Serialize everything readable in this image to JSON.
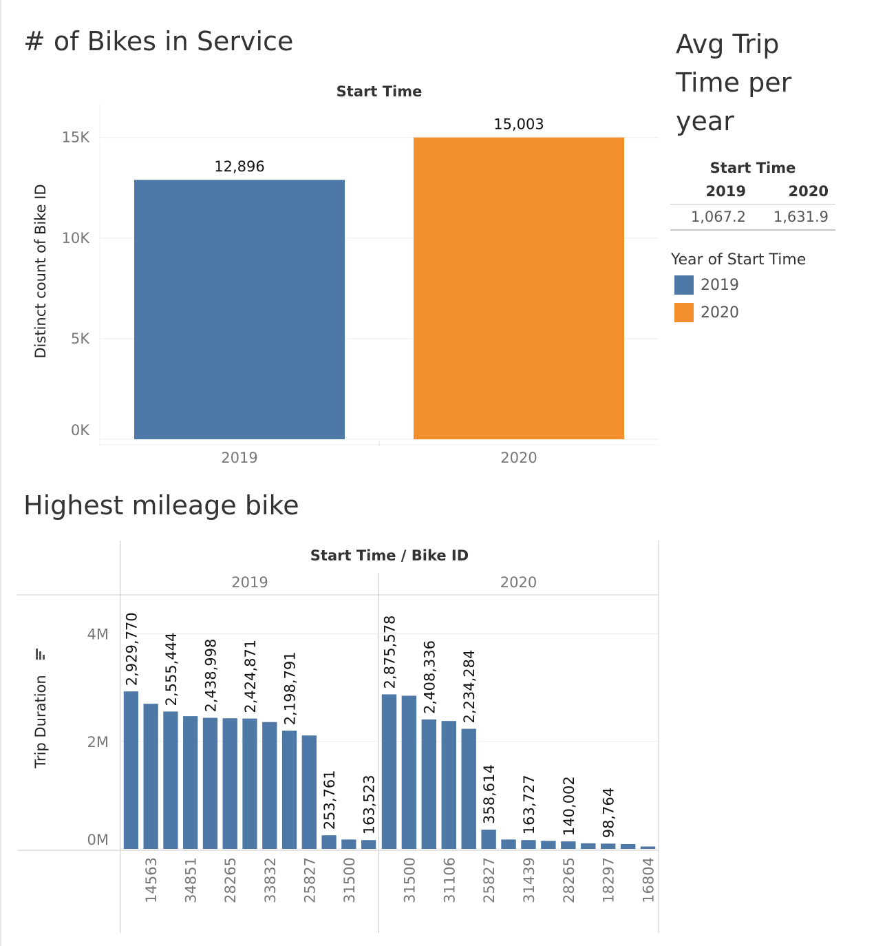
{
  "colors": {
    "y2019": "#4e79a7",
    "y2020": "#f28e2b",
    "grid": "#ececec"
  },
  "chart_data": [
    {
      "type": "bar",
      "title": "# of Bikes in Service",
      "column_header": "Start Time",
      "ylabel": "Distinct count of Bike ID",
      "categories": [
        "2019",
        "2020"
      ],
      "values": [
        12896,
        15003
      ],
      "value_labels": [
        "12,896",
        "15,003"
      ],
      "ylim": [
        0,
        16700
      ],
      "yticks": [
        {
          "value": 0,
          "label": "0K"
        },
        {
          "value": 5000,
          "label": "5K"
        },
        {
          "value": 10000,
          "label": "10K"
        },
        {
          "value": 15000,
          "label": "15K"
        }
      ],
      "grid": true
    },
    {
      "type": "table",
      "title": "Avg Trip Time per year",
      "column_header": "Start Time",
      "columns": [
        "2019",
        "2020"
      ],
      "values": [
        "1,067.2",
        "1,631.9"
      ],
      "legend": {
        "title": "Year of Start Time",
        "items": [
          {
            "label": "2019",
            "color": "#4e79a7"
          },
          {
            "label": "2020",
            "color": "#f28e2b"
          }
        ]
      }
    },
    {
      "type": "bar",
      "title": "Highest mileage bike",
      "column_header": "Start Time  /  Bike ID",
      "ylabel": "Trip Duration",
      "ylim": [
        0,
        4700000
      ],
      "yticks": [
        {
          "value": 0,
          "label": "0M"
        },
        {
          "value": 2000000,
          "label": "2M"
        },
        {
          "value": 4000000,
          "label": "4M"
        }
      ],
      "grid": true,
      "panes": [
        {
          "name": "2019",
          "values": [
            2929770,
            2700000,
            2555444,
            2470000,
            2438998,
            2430000,
            2424871,
            2360000,
            2198791,
            2110000,
            253761,
            175000,
            163523
          ],
          "value_labels": [
            "2,929,770",
            "",
            "2,555,444",
            "",
            "2,438,998",
            "",
            "2,424,871",
            "",
            "2,198,791",
            "",
            "253,761",
            "",
            "163,523"
          ],
          "tick_labels": [
            "",
            "14563",
            "",
            "34851",
            "",
            "28265",
            "",
            "33832",
            "",
            "25827",
            "",
            "31500",
            ""
          ]
        },
        {
          "name": "2020",
          "values": [
            2875578,
            2850000,
            2408336,
            2380000,
            2234284,
            358614,
            175000,
            163727,
            150000,
            140002,
            105000,
            98764,
            90000,
            45000
          ],
          "value_labels": [
            "2,875,578",
            "",
            "2,408,336",
            "",
            "2,234,284",
            "358,614",
            "",
            "163,727",
            "",
            "140,002",
            "",
            "98,764",
            "",
            ""
          ],
          "tick_labels": [
            "",
            "31500",
            "",
            "31106",
            "",
            "25827",
            "",
            "31439",
            "",
            "28265",
            "",
            "18297",
            "",
            "16804"
          ]
        }
      ]
    }
  ]
}
